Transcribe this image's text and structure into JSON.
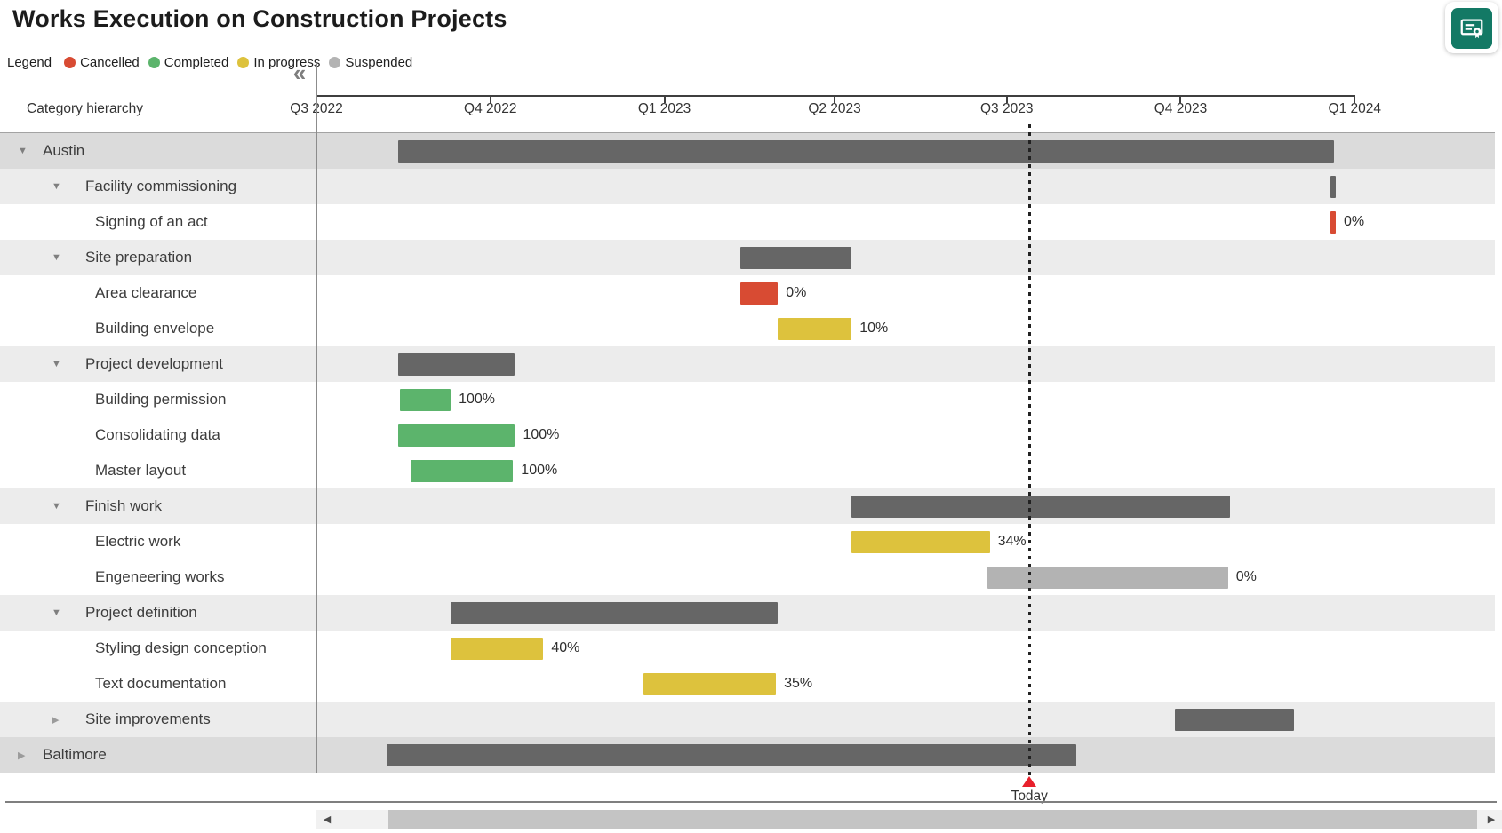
{
  "app": {
    "title": "Works Execution on Construction Projects"
  },
  "toolbar": {
    "badge_icon": "certificate-badge-icon"
  },
  "legend": {
    "label": "Legend",
    "items": [
      {
        "label": "Cancelled",
        "status": "cancelled",
        "color": "#D84B33"
      },
      {
        "label": "Completed",
        "status": "completed",
        "color": "#5CB46C"
      },
      {
        "label": "In progress",
        "status": "in_progress",
        "color": "#DDC23D"
      },
      {
        "label": "Suspended",
        "status": "suspended",
        "color": "#B3B3B3"
      }
    ]
  },
  "panel": {
    "header": "Category hierarchy",
    "collapse_glyph": "«"
  },
  "chart_data": {
    "type": "gantt",
    "title": "Works Execution on Construction Projects",
    "axis": {
      "unit": "quarter",
      "start_date": "2022-07-01",
      "end_date": "2024-01-01",
      "ticks": [
        {
          "label": "Q3 2022",
          "date": "2022-07-01"
        },
        {
          "label": "Q4 2022",
          "date": "2022-10-01"
        },
        {
          "label": "Q1 2023",
          "date": "2023-01-01"
        },
        {
          "label": "Q2 2023",
          "date": "2023-04-01"
        },
        {
          "label": "Q3 2023",
          "date": "2023-07-01"
        },
        {
          "label": "Q4 2023",
          "date": "2023-10-01"
        },
        {
          "label": "Q1 2024",
          "date": "2024-01-01"
        }
      ]
    },
    "today": {
      "date": "2023-07-13",
      "label": "Today",
      "marker_color": "#E8202C"
    },
    "status_colors": {
      "summary": "#666666",
      "cancelled": "#D84B33",
      "completed": "#5CB46C",
      "in_progress": "#DDC23D",
      "suspended": "#B3B3B3"
    },
    "tasks": [
      {
        "name": "Austin",
        "level": 0,
        "node": "expanded",
        "status": "summary",
        "start": "2022-08-13",
        "end": "2023-12-21",
        "progress": null
      },
      {
        "name": "Facility commissioning",
        "level": 1,
        "node": "expanded",
        "status": "summary",
        "start": "2023-12-19",
        "end": "2023-12-22",
        "progress": null
      },
      {
        "name": "Signing of an act",
        "level": 2,
        "node": "leaf",
        "status": "cancelled",
        "start": "2023-12-19",
        "end": "2023-12-22",
        "progress": "0%"
      },
      {
        "name": "Site preparation",
        "level": 1,
        "node": "expanded",
        "status": "summary",
        "start": "2023-02-10",
        "end": "2023-04-10",
        "progress": null
      },
      {
        "name": "Area clearance",
        "level": 2,
        "node": "leaf",
        "status": "cancelled",
        "start": "2023-02-10",
        "end": "2023-03-02",
        "progress": "0%"
      },
      {
        "name": "Building envelope",
        "level": 2,
        "node": "leaf",
        "status": "in_progress",
        "start": "2023-03-02",
        "end": "2023-04-10",
        "progress": "10%"
      },
      {
        "name": "Project development",
        "level": 1,
        "node": "expanded",
        "status": "summary",
        "start": "2022-08-13",
        "end": "2022-10-14",
        "progress": null
      },
      {
        "name": "Building permission",
        "level": 2,
        "node": "leaf",
        "status": "completed",
        "start": "2022-08-14",
        "end": "2022-09-10",
        "progress": "100%"
      },
      {
        "name": "Consolidating data",
        "level": 2,
        "node": "leaf",
        "status": "completed",
        "start": "2022-08-13",
        "end": "2022-10-14",
        "progress": "100%"
      },
      {
        "name": "Master layout",
        "level": 2,
        "node": "leaf",
        "status": "completed",
        "start": "2022-08-20",
        "end": "2022-10-13",
        "progress": "100%"
      },
      {
        "name": "Finish work",
        "level": 1,
        "node": "expanded",
        "status": "summary",
        "start": "2023-04-10",
        "end": "2023-10-27",
        "progress": null
      },
      {
        "name": "Electric work",
        "level": 2,
        "node": "leaf",
        "status": "in_progress",
        "start": "2023-04-10",
        "end": "2023-06-22",
        "progress": "34%"
      },
      {
        "name": "Engeneering works",
        "level": 2,
        "node": "leaf",
        "status": "suspended",
        "start": "2023-06-21",
        "end": "2023-10-26",
        "progress": "0%"
      },
      {
        "name": "Project definition",
        "level": 1,
        "node": "expanded",
        "status": "summary",
        "start": "2022-09-10",
        "end": "2023-03-02",
        "progress": null
      },
      {
        "name": "Styling design conception",
        "level": 2,
        "node": "leaf",
        "status": "in_progress",
        "start": "2022-09-10",
        "end": "2022-10-29",
        "progress": "40%"
      },
      {
        "name": "Text documentation",
        "level": 2,
        "node": "leaf",
        "status": "in_progress",
        "start": "2022-12-21",
        "end": "2023-03-01",
        "progress": "35%"
      },
      {
        "name": "Site improvements",
        "level": 1,
        "node": "collapsed",
        "status": "summary",
        "start": "2023-09-28",
        "end": "2023-11-30",
        "progress": null
      },
      {
        "name": "Baltimore",
        "level": 0,
        "node": "collapsed",
        "status": "summary",
        "start": "2022-08-07",
        "end": "2023-08-07",
        "progress": null
      }
    ]
  },
  "scrollbar": {
    "left_glyph": "◀",
    "right_glyph": "▶"
  }
}
